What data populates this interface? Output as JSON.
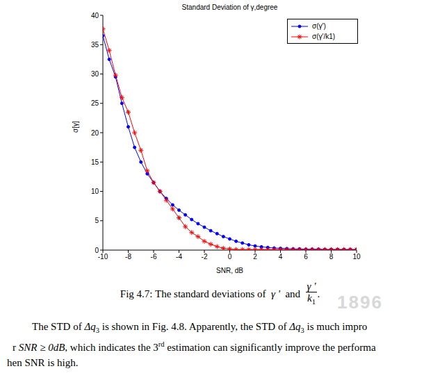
{
  "chart_data": {
    "type": "line",
    "title": "Standard Deviation of γ,degree",
    "x_label": "SNR, dB",
    "y_label": "σ[γ]",
    "x": [
      -10,
      -9.5,
      -9,
      -8.5,
      -8,
      -7.5,
      -7,
      -6.5,
      -6,
      -5.5,
      -5,
      -4.5,
      -4,
      -3.5,
      -3,
      -2.5,
      -2,
      -1.5,
      -1,
      -0.5,
      0,
      0.5,
      1,
      1.5,
      2,
      2.5,
      3,
      3.5,
      4,
      4.5,
      5,
      5.5,
      6,
      6.5,
      7,
      7.5,
      8,
      8.5,
      9,
      9.5,
      10
    ],
    "xlim": [
      -10,
      10
    ],
    "xticks": [
      -10,
      -8,
      -6,
      -4,
      -2,
      0,
      2,
      4,
      6,
      8,
      10
    ],
    "ylim": [
      0,
      40
    ],
    "yticks": [
      0,
      5,
      10,
      15,
      20,
      25,
      30,
      35,
      40
    ],
    "grid": false,
    "legend": "upper right",
    "series": [
      {
        "name": "σ(γ')",
        "color": "#0000ff",
        "marker": "dot",
        "line_style": "solid",
        "values": [
          36.5,
          32.5,
          29.5,
          25,
          21,
          17.5,
          15,
          13,
          11.5,
          10,
          8.8,
          7.7,
          6.8,
          6,
          5.2,
          4.5,
          3.9,
          3.3,
          2.8,
          2.3,
          1.9,
          1.5,
          1.2,
          0.9,
          0.7,
          0.55,
          0.45,
          0.35,
          0.3,
          0.25,
          0.2,
          0.2,
          0.15,
          0.15,
          0.15,
          0.1,
          0.1,
          0.1,
          0.1,
          0.1,
          0.1
        ]
      },
      {
        "name": "σ(γ'/k1)",
        "color": "#ff0000",
        "marker": "star",
        "line_style": "solid",
        "values": [
          37.7,
          34,
          29.8,
          26,
          23.5,
          20,
          17,
          13.5,
          11.5,
          10,
          8.5,
          7,
          5.5,
          4,
          3,
          2.3,
          1.5,
          1,
          0.6,
          0.3,
          0.2,
          0.1,
          0.1,
          0.1,
          0.1,
          0.1,
          0.1,
          0.1,
          0.1,
          0.1,
          0.1,
          0.1,
          0.1,
          0.1,
          0.1,
          0.1,
          0.1,
          0.1,
          0.1,
          0.1,
          0.1
        ]
      }
    ]
  },
  "caption": {
    "prefix": "Fig 4.7: The standard deviations of",
    "symbol": "γ '",
    "mid": "and",
    "frac_num": "γ '",
    "frac_den": "k",
    "frac_sub": "1",
    "end": "."
  },
  "watermark": "1896",
  "paragraph": [
    [
      {
        "t": "The STD of "
      },
      {
        "i": "Δq"
      },
      {
        "sub": "3"
      },
      {
        "t": " is shown in Fig. 4.8. Apparently, the STD of "
      },
      {
        "i": "Δq"
      },
      {
        "sub": "3"
      },
      {
        "t": " is much impro"
      }
    ],
    [
      {
        "t": "r "
      },
      {
        "i": "SNR ≥ 0dB"
      },
      {
        "t": ", which indicates the 3"
      },
      {
        "sup": "rd"
      },
      {
        "t": " estimation can significantly improve the performa"
      }
    ],
    [
      {
        "t": "hen SNR is high."
      }
    ]
  ]
}
